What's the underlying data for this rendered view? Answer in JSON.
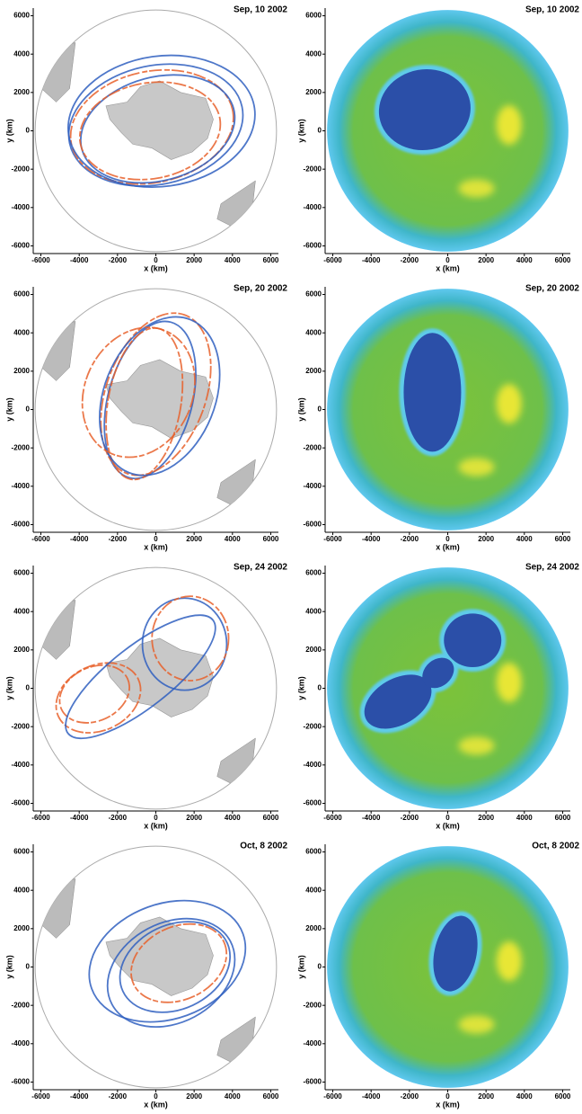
{
  "chart_data": [
    {
      "type": "map",
      "title": "Sep, 10 2002",
      "xlabel": "x (km)",
      "ylabel": "y (km)",
      "xlim": [
        -6400,
        6400
      ],
      "ylim": [
        -6400,
        6400
      ],
      "xticks": [
        -6000,
        -4000,
        -2000,
        0,
        2000,
        4000,
        6000
      ],
      "yticks": [
        -6000,
        -4000,
        -2000,
        0,
        2000,
        4000,
        6000
      ]
    },
    {
      "type": "map",
      "title": "Sep, 10 2002",
      "xlabel": "x (km)",
      "ylabel": "y (km)",
      "xlim": [
        -6400,
        6400
      ],
      "ylim": [
        -6400,
        6400
      ],
      "xticks": [
        -6000,
        -4000,
        -2000,
        0,
        2000,
        4000,
        6000
      ],
      "yticks": [
        -6000,
        -4000,
        -2000,
        0,
        2000,
        4000,
        6000
      ]
    },
    {
      "type": "map",
      "title": "Sep, 20 2002",
      "xlabel": "x (km)",
      "ylabel": "y (km)",
      "xlim": [
        -6400,
        6400
      ],
      "ylim": [
        -6400,
        6400
      ],
      "xticks": [
        -6000,
        -4000,
        -2000,
        0,
        2000,
        4000,
        6000
      ],
      "yticks": [
        -6000,
        -4000,
        -2000,
        0,
        2000,
        4000,
        6000
      ]
    },
    {
      "type": "map",
      "title": "Sep, 20 2002",
      "xlabel": "x (km)",
      "ylabel": "y (km)",
      "xlim": [
        -6400,
        6400
      ],
      "ylim": [
        -6400,
        6400
      ],
      "xticks": [
        -6000,
        -4000,
        -2000,
        0,
        2000,
        4000,
        6000
      ],
      "yticks": [
        -6000,
        -4000,
        -2000,
        0,
        2000,
        4000,
        6000
      ]
    },
    {
      "type": "map",
      "title": "Sep, 24 2002",
      "xlabel": "x (km)",
      "ylabel": "y (km)",
      "xlim": [
        -6400,
        6400
      ],
      "ylim": [
        -6400,
        6400
      ],
      "xticks": [
        -6000,
        -4000,
        -2000,
        0,
        2000,
        4000,
        6000
      ],
      "yticks": [
        -6000,
        -4000,
        -2000,
        0,
        2000,
        4000,
        6000
      ]
    },
    {
      "type": "map",
      "title": "Sep, 24 2002",
      "xlabel": "x (km)",
      "ylabel": "y (km)",
      "xlim": [
        -6400,
        6400
      ],
      "ylim": [
        -6400,
        6400
      ],
      "xticks": [
        -6000,
        -4000,
        -2000,
        0,
        2000,
        4000,
        6000
      ],
      "yticks": [
        -6000,
        -4000,
        -2000,
        0,
        2000,
        4000,
        6000
      ]
    },
    {
      "type": "map",
      "title": "Oct, 8 2002",
      "xlabel": "x (km)",
      "ylabel": "y (km)",
      "xlim": [
        -6400,
        6400
      ],
      "ylim": [
        -6400,
        6400
      ],
      "xticks": [
        -6000,
        -4000,
        -2000,
        0,
        2000,
        4000,
        6000
      ],
      "yticks": [
        -6000,
        -4000,
        -2000,
        0,
        2000,
        4000,
        6000
      ]
    },
    {
      "type": "map",
      "title": "Oct, 8 2002",
      "xlabel": "x (km)",
      "ylabel": "y (km)",
      "xlim": [
        -6400,
        6400
      ],
      "ylim": [
        -6400,
        6400
      ],
      "xticks": [
        -6000,
        -4000,
        -2000,
        0,
        2000,
        4000,
        6000
      ],
      "yticks": [
        -6000,
        -4000,
        -2000,
        0,
        2000,
        4000,
        6000
      ]
    }
  ]
}
